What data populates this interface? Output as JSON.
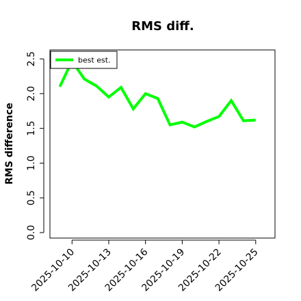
{
  "chart_data": {
    "type": "line",
    "title": "RMS diff.",
    "xlabel": "",
    "ylabel": "RMS difference",
    "ylim": [
      0,
      2.55
    ],
    "yticks": [
      "0.0",
      "0.5",
      "1.0",
      "1.5",
      "2.0",
      "2.5"
    ],
    "ytick_values": [
      0,
      0.5,
      1.0,
      1.5,
      2.0,
      2.5
    ],
    "xlim": [
      "2025-10-08",
      "2025-10-26"
    ],
    "xticks": [
      "2025-10-10",
      "2025-10-13",
      "2025-10-16",
      "2025-10-19",
      "2025-10-22",
      "2025-10-25"
    ],
    "grid": false,
    "legend_position": "top-left",
    "series": [
      {
        "name": "best est.",
        "color": "#00ff00",
        "x": [
          "2025-10-09",
          "2025-10-10",
          "2025-10-11",
          "2025-10-12",
          "2025-10-13",
          "2025-10-14",
          "2025-10-15",
          "2025-10-16",
          "2025-10-17",
          "2025-10-18",
          "2025-10-19",
          "2025-10-20",
          "2025-10-21",
          "2025-10-22",
          "2025-10-23",
          "2025-10-24",
          "2025-10-25"
        ],
        "values": [
          2.1,
          2.47,
          2.21,
          2.11,
          1.95,
          2.09,
          1.78,
          2.0,
          1.93,
          1.55,
          1.59,
          1.52,
          1.6,
          1.67,
          1.9,
          1.61,
          1.62
        ]
      }
    ]
  }
}
